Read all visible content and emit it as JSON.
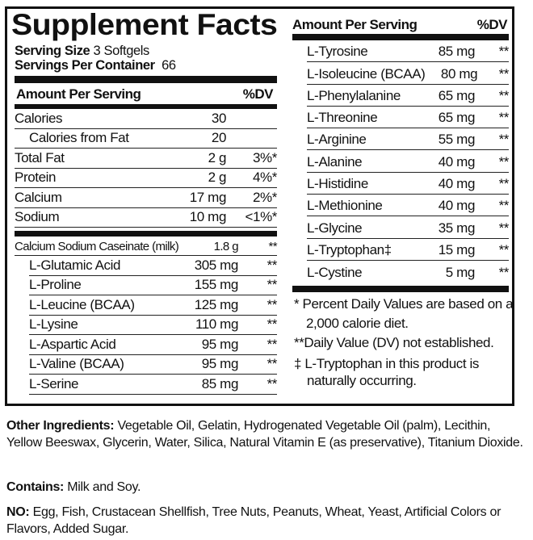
{
  "title": "Supplement Facts",
  "serving_size_label": "Serving Size",
  "serving_size": "3 Softgels",
  "servings_label": "Servings Per Container",
  "servings": "66",
  "header": {
    "amount": "Amount Per Serving",
    "dv": "%DV"
  },
  "left_top": [
    {
      "name": "Calories",
      "amount": "30",
      "dv": ""
    },
    {
      "name": "Calories from Fat",
      "amount": "20",
      "dv": "",
      "indent": true
    },
    {
      "name": "Total Fat",
      "amount": "2 g",
      "dv": "3%*"
    },
    {
      "name": "Protein",
      "amount": "2 g",
      "dv": "4%*"
    },
    {
      "name": "Calcium",
      "amount": "17 mg",
      "dv": "2%*"
    },
    {
      "name": "Sodium",
      "amount": "10 mg",
      "dv": "<1%*"
    }
  ],
  "caseinate": {
    "name": "Calcium Sodium Caseinate (milk)",
    "amount": "1.8 g",
    "dv": "**"
  },
  "left_aminos": [
    {
      "name": "L-Glutamic Acid",
      "amount": "305 mg",
      "dv": "**"
    },
    {
      "name": "L-Proline",
      "amount": "155 mg",
      "dv": "**"
    },
    {
      "name": "L-Leucine (BCAA)",
      "amount": "125 mg",
      "dv": "**"
    },
    {
      "name": "L-Lysine",
      "amount": "110 mg",
      "dv": "**"
    },
    {
      "name": "L-Aspartic Acid",
      "amount": "95 mg",
      "dv": "**"
    },
    {
      "name": "L-Valine (BCAA)",
      "amount": "95 mg",
      "dv": "**"
    },
    {
      "name": "L-Serine",
      "amount": "85 mg",
      "dv": "**"
    }
  ],
  "right_aminos": [
    {
      "name": "L-Tyrosine",
      "amount": "85 mg",
      "dv": "**"
    },
    {
      "name": "L-Isoleucine (BCAA)",
      "amount": "80 mg",
      "dv": "**"
    },
    {
      "name": "L-Phenylalanine",
      "amount": "65 mg",
      "dv": "**"
    },
    {
      "name": "L-Threonine",
      "amount": "65 mg",
      "dv": "**"
    },
    {
      "name": "L-Arginine",
      "amount": "55 mg",
      "dv": "**"
    },
    {
      "name": "L-Alanine",
      "amount": "40 mg",
      "dv": "**"
    },
    {
      "name": "L-Histidine",
      "amount": "40 mg",
      "dv": "**"
    },
    {
      "name": "L-Methionine",
      "amount": "40 mg",
      "dv": "**"
    },
    {
      "name": "L-Glycine",
      "amount": "35 mg",
      "dv": "**"
    },
    {
      "name": "L-Tryptophan‡",
      "amount": "15 mg",
      "dv": "**"
    },
    {
      "name": "L-Cystine",
      "amount": "5 mg",
      "dv": "**"
    }
  ],
  "footnotes": [
    "* Percent Daily Values are based on a 2,000 calorie diet.",
    "**Daily Value (DV) not established.",
    "‡ L-Tryptophan in this product is naturally occurring."
  ],
  "other_label": "Other Ingredients:",
  "other": "Vegetable Oil, Gelatin, Hydrogenated Vegetable Oil (palm), Lecithin, Yellow Beeswax, Glycerin, Water, Silica, Natural Vitamin E (as preservative), Titanium Dioxide.",
  "contains_label": "Contains:",
  "contains": "Milk and Soy.",
  "no_label": "NO:",
  "no": "Egg, Fish, Crustacean Shellfish, Tree Nuts, Peanuts, Wheat, Yeast, Artificial Colors or Flavors, Added Sugar."
}
